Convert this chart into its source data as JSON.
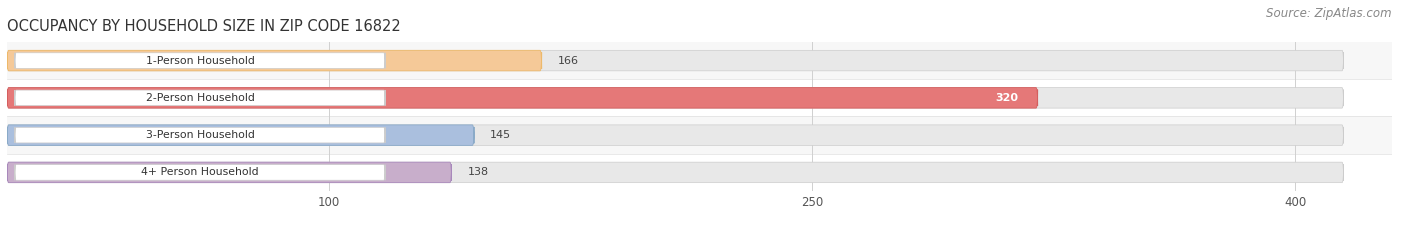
{
  "title": "OCCUPANCY BY HOUSEHOLD SIZE IN ZIP CODE 16822",
  "source": "Source: ZipAtlas.com",
  "categories": [
    "1-Person Household",
    "2-Person Household",
    "3-Person Household",
    "4+ Person Household"
  ],
  "values": [
    166,
    320,
    145,
    138
  ],
  "bar_colors": [
    "#F5C998",
    "#E57878",
    "#AABFDE",
    "#C8AECB"
  ],
  "bar_edge_colors": [
    "#EDB96A",
    "#D45F5F",
    "#8AAAC8",
    "#A888BB"
  ],
  "xlim_max": 430,
  "bg_bar_max": 415,
  "xticks": [
    100,
    250,
    400
  ],
  "background_color": "#ffffff",
  "plot_bg_color": "#f5f5f5",
  "bar_bg_color": "#e8e8e8",
  "stripe_color": "#f0f0f0",
  "title_fontsize": 10.5,
  "source_fontsize": 8.5,
  "bar_height": 0.55,
  "figsize": [
    14.06,
    2.33
  ],
  "dpi": 100
}
